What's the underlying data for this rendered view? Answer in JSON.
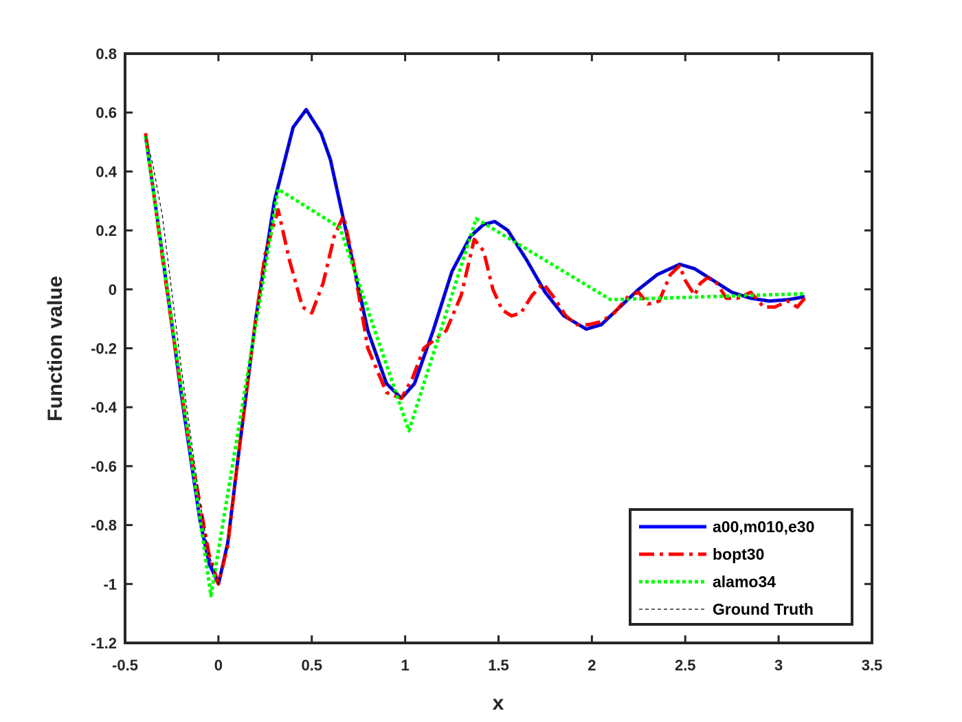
{
  "chart_data": {
    "type": "line",
    "title": "",
    "xlabel": "x",
    "ylabel": "Function value",
    "xlim": [
      -0.5,
      3.5
    ],
    "ylim": [
      -1.2,
      0.8
    ],
    "xticks": [
      -0.5,
      0,
      0.5,
      1,
      1.5,
      2,
      2.5,
      3,
      3.5
    ],
    "xtick_labels": [
      "-0.5",
      "0",
      "0.5",
      "1",
      "1.5",
      "2",
      "2.5",
      "3",
      "3.5"
    ],
    "yticks": [
      -1.2,
      -1,
      -0.8,
      -0.6,
      -0.4,
      -0.2,
      0,
      0.2,
      0.4,
      0.6,
      0.8
    ],
    "ytick_labels": [
      "-1.2",
      "-1",
      "-0.8",
      "-0.6",
      "-0.4",
      "-0.2",
      "0",
      "0.2",
      "0.4",
      "0.6",
      "0.8"
    ],
    "grid": false,
    "legend_position": "bottom-right",
    "series": [
      {
        "name": "a00,m010,e30",
        "color": "#0000ff",
        "style": "solid",
        "x": [
          -0.39,
          -0.3,
          -0.2,
          -0.1,
          -0.05,
          0.0,
          0.05,
          0.1,
          0.2,
          0.3,
          0.4,
          0.47,
          0.55,
          0.6,
          0.7,
          0.8,
          0.9,
          0.98,
          1.05,
          1.15,
          1.25,
          1.35,
          1.42,
          1.48,
          1.55,
          1.65,
          1.75,
          1.85,
          1.97,
          2.05,
          2.15,
          2.25,
          2.35,
          2.47,
          2.55,
          2.65,
          2.75,
          2.85,
          2.95,
          3.05,
          3.14
        ],
        "y": [
          0.52,
          0.12,
          -0.35,
          -0.78,
          -0.93,
          -1.0,
          -0.86,
          -0.6,
          -0.1,
          0.3,
          0.55,
          0.61,
          0.53,
          0.44,
          0.15,
          -0.14,
          -0.32,
          -0.37,
          -0.32,
          -0.14,
          0.06,
          0.18,
          0.22,
          0.23,
          0.2,
          0.1,
          -0.01,
          -0.09,
          -0.135,
          -0.12,
          -0.06,
          0.0,
          0.05,
          0.085,
          0.07,
          0.03,
          -0.01,
          -0.03,
          -0.04,
          -0.035,
          -0.025
        ]
      },
      {
        "name": "bopt30",
        "color": "#ff0000",
        "style": "dash-dot",
        "x": [
          -0.39,
          -0.32,
          -0.25,
          -0.15,
          -0.05,
          0.0,
          0.05,
          0.1,
          0.2,
          0.25,
          0.32,
          0.38,
          0.45,
          0.5,
          0.56,
          0.62,
          0.67,
          0.72,
          0.8,
          0.9,
          0.98,
          1.04,
          1.1,
          1.16,
          1.22,
          1.3,
          1.37,
          1.42,
          1.47,
          1.52,
          1.57,
          1.62,
          1.68,
          1.74,
          1.8,
          1.86,
          1.92,
          1.98,
          2.05,
          2.12,
          2.2,
          2.25,
          2.3,
          2.36,
          2.42,
          2.47,
          2.5,
          2.55,
          2.58,
          2.62,
          2.67,
          2.72,
          2.78,
          2.85,
          2.92,
          2.98,
          3.05,
          3.1,
          3.14
        ],
        "y": [
          0.53,
          0.2,
          -0.12,
          -0.55,
          -0.9,
          -1.0,
          -0.87,
          -0.6,
          -0.1,
          0.12,
          0.27,
          0.1,
          -0.06,
          -0.08,
          0.02,
          0.18,
          0.25,
          0.1,
          -0.2,
          -0.35,
          -0.37,
          -0.3,
          -0.2,
          -0.17,
          -0.14,
          -0.02,
          0.17,
          0.13,
          0.0,
          -0.07,
          -0.09,
          -0.08,
          -0.02,
          0.02,
          -0.03,
          -0.09,
          -0.12,
          -0.12,
          -0.11,
          -0.08,
          -0.02,
          -0.01,
          -0.05,
          -0.04,
          0.05,
          0.08,
          0.03,
          -0.02,
          0.02,
          0.04,
          0.02,
          -0.03,
          -0.03,
          -0.01,
          -0.06,
          -0.06,
          -0.04,
          -0.06,
          -0.03
        ]
      },
      {
        "name": "alamo34",
        "color": "#00ff00",
        "style": "dotted",
        "x": [
          -0.39,
          -0.04,
          0.32,
          0.65,
          1.02,
          1.38,
          2.1,
          3.14
        ],
        "y": [
          0.52,
          -1.04,
          0.34,
          0.21,
          -0.48,
          0.24,
          -0.035,
          -0.015
        ]
      },
      {
        "name": "Ground Truth",
        "color": "#000000",
        "style": "thin-dashed",
        "x": [
          -0.39,
          -0.35,
          -0.3,
          -0.2,
          -0.1,
          -0.05,
          0.0,
          0.05,
          0.1,
          0.2,
          0.3,
          0.4,
          0.47,
          0.55,
          0.6,
          0.7,
          0.8,
          0.9,
          0.98,
          1.05,
          1.15,
          1.25,
          1.35,
          1.42,
          1.48,
          1.55,
          1.65,
          1.75,
          1.85,
          1.97,
          2.05,
          2.15,
          2.25,
          2.35,
          2.47,
          2.55,
          2.65,
          2.75,
          2.85,
          2.95,
          3.05,
          3.14
        ],
        "y": [
          0.52,
          0.42,
          0.25,
          -0.26,
          -0.72,
          -0.9,
          -1.0,
          -0.86,
          -0.6,
          -0.1,
          0.3,
          0.55,
          0.61,
          0.53,
          0.44,
          0.15,
          -0.14,
          -0.32,
          -0.37,
          -0.32,
          -0.14,
          0.06,
          0.18,
          0.22,
          0.23,
          0.2,
          0.1,
          -0.01,
          -0.09,
          -0.135,
          -0.12,
          -0.06,
          0.0,
          0.05,
          0.085,
          0.07,
          0.03,
          -0.01,
          -0.03,
          -0.04,
          -0.035,
          -0.025
        ]
      }
    ]
  }
}
